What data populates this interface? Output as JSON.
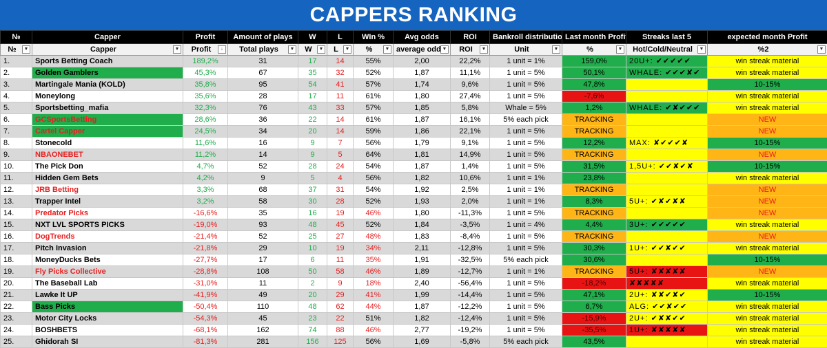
{
  "title": "CAPPERS RANKING",
  "headers_top": [
    "№",
    "Capper",
    "Profit",
    "Amount of plays",
    "W",
    "L",
    "WIn %",
    "Avg odds",
    "ROI",
    "Bankroll distribution",
    "Last month Profit",
    "Streaks last 5",
    "expected month Profit"
  ],
  "headers_filter": [
    "№",
    "Capper",
    "Profit",
    "Total plays",
    "W",
    "L",
    "%",
    "average odds",
    "ROI",
    "Unit",
    "%",
    "Hot/Cold/Neutral",
    "%2"
  ],
  "colors": {
    "banner": "#1565c0",
    "green": "#1fae4b",
    "red": "#e81e1e",
    "yellow": "#ffff00",
    "orange": "#ffb515"
  },
  "rows": [
    {
      "n": "1.",
      "name": "Sports Betting Coach",
      "name_color": "black",
      "name_bg": "none",
      "profit": "189,2%",
      "plays": "31",
      "w": "17",
      "l": "14",
      "win": "55%",
      "odds": "2,00",
      "roi": "22,2%",
      "unit": "1 unit = 1%",
      "lm": "159,0%",
      "lm_bg": "green",
      "streak": "20U+: ✔✔✔✔✔",
      "streak_bg": "green",
      "exp": "win streak material",
      "exp_bg": "yellow"
    },
    {
      "n": "2.",
      "name": "Golden Gamblers",
      "name_color": "black",
      "name_bg": "green",
      "profit": "45,3%",
      "plays": "67",
      "w": "35",
      "l": "32",
      "win": "52%",
      "odds": "1,87",
      "roi": "11,1%",
      "unit": "1 unit = 5%",
      "lm": "50,1%",
      "lm_bg": "green",
      "streak": "WHALE: ✔✔✔✘✔",
      "streak_bg": "green",
      "exp": "win streak material",
      "exp_bg": "yellow"
    },
    {
      "n": "3.",
      "name": "Martingale Mania (KOLD)",
      "name_color": "black",
      "name_bg": "none",
      "profit": "35,8%",
      "plays": "95",
      "w": "54",
      "l": "41",
      "win": "57%",
      "odds": "1,74",
      "roi": "9,6%",
      "unit": "1 unit = 5%",
      "lm": "47,8%",
      "lm_bg": "green",
      "streak": "",
      "streak_bg": "yellow",
      "exp": "10-15%",
      "exp_bg": "green"
    },
    {
      "n": "4.",
      "name": "Moneylong",
      "name_color": "black",
      "name_bg": "none",
      "profit": "35,6%",
      "plays": "28",
      "w": "17",
      "l": "11",
      "win": "61%",
      "odds": "1,80",
      "roi": "27,4%",
      "unit": "1 unit = 5%",
      "lm": "-7,6%",
      "lm_bg": "red",
      "streak": "",
      "streak_bg": "yellow",
      "exp": "win streak material",
      "exp_bg": "yellow"
    },
    {
      "n": "5.",
      "name": "Sportsbetting_mafia",
      "name_color": "black",
      "name_bg": "none",
      "profit": "32,3%",
      "plays": "76",
      "w": "43",
      "l": "33",
      "win": "57%",
      "odds": "1,85",
      "roi": "5,8%",
      "unit": "Whale = 5%",
      "lm": "1,2%",
      "lm_bg": "green",
      "streak": "WHALE: ✔✘✔✔✔",
      "streak_bg": "green",
      "exp": "win streak material",
      "exp_bg": "yellow"
    },
    {
      "n": "6.",
      "name": "GCSportsBetting",
      "name_color": "red",
      "name_bg": "green",
      "profit": "28,6%",
      "plays": "36",
      "w": "22",
      "l": "14",
      "win": "61%",
      "odds": "1,87",
      "roi": "16,1%",
      "unit": "5% each pick",
      "lm": "TRACKING",
      "lm_bg": "orange",
      "streak": "",
      "streak_bg": "yellow",
      "exp": "NEW",
      "exp_bg": "orange"
    },
    {
      "n": "7.",
      "name": "Cartel Capper",
      "name_color": "red",
      "name_bg": "green",
      "profit": "24,5%",
      "plays": "34",
      "w": "20",
      "l": "14",
      "win": "59%",
      "odds": "1,86",
      "roi": "22,1%",
      "unit": "1 unit = 5%",
      "lm": "TRACKING",
      "lm_bg": "orange",
      "streak": "",
      "streak_bg": "yellow",
      "exp": "NEW",
      "exp_bg": "orange"
    },
    {
      "n": "8.",
      "name": "Stonecold",
      "name_color": "black",
      "name_bg": "none",
      "profit": "11,6%",
      "plays": "16",
      "w": "9",
      "l": "7",
      "win": "56%",
      "odds": "1,79",
      "roi": "9,1%",
      "unit": "1 unit = 5%",
      "lm": "12,2%",
      "lm_bg": "green",
      "streak": "MAX: ✘✔✔✔✘",
      "streak_bg": "yellow",
      "exp": "10-15%",
      "exp_bg": "green"
    },
    {
      "n": "9.",
      "name": "NBAONEBET",
      "name_color": "red",
      "name_bg": "none",
      "profit": "11,2%",
      "plays": "14",
      "w": "9",
      "l": "5",
      "win": "64%",
      "odds": "1,81",
      "roi": "14,9%",
      "unit": "1 unit = 5%",
      "lm": "TRACKING",
      "lm_bg": "orange",
      "streak": "",
      "streak_bg": "yellow",
      "exp": "NEW",
      "exp_bg": "orange"
    },
    {
      "n": "10.",
      "name": "The Pick Don",
      "name_color": "black",
      "name_bg": "none",
      "profit": "4,7%",
      "plays": "52",
      "w": "28",
      "l": "24",
      "win": "54%",
      "odds": "1,87",
      "roi": "1,4%",
      "unit": "1 unit = 5%",
      "lm": "31,5%",
      "lm_bg": "green",
      "streak": "1,5U+: ✔✔✘✔✘",
      "streak_bg": "yellow",
      "exp": "10-15%",
      "exp_bg": "green"
    },
    {
      "n": "11.",
      "name": "Hidden Gem Bets",
      "name_color": "black",
      "name_bg": "none",
      "profit": "4,2%",
      "plays": "9",
      "w": "5",
      "l": "4",
      "win": "56%",
      "odds": "1,82",
      "roi": "10,6%",
      "unit": "1 unit = 1%",
      "lm": "23,8%",
      "lm_bg": "green",
      "streak": "",
      "streak_bg": "yellow",
      "exp": "win streak material",
      "exp_bg": "yellow"
    },
    {
      "n": "12.",
      "name": "JRB Betting",
      "name_color": "red",
      "name_bg": "none",
      "profit": "3,3%",
      "plays": "68",
      "w": "37",
      "l": "31",
      "win": "54%",
      "odds": "1,92",
      "roi": "2,5%",
      "unit": "1 unit = 1%",
      "lm": "TRACKING",
      "lm_bg": "orange",
      "streak": "",
      "streak_bg": "yellow",
      "exp": "NEW",
      "exp_bg": "orange"
    },
    {
      "n": "13.",
      "name": "Trapper Intel",
      "name_color": "black",
      "name_bg": "none",
      "profit": "3,2%",
      "plays": "58",
      "w": "30",
      "l": "28",
      "win": "52%",
      "odds": "1,93",
      "roi": "2,0%",
      "unit": "1 unit = 1%",
      "lm": "8,3%",
      "lm_bg": "green",
      "streak": "5U+: ✔✘✔✘✘",
      "streak_bg": "yellow",
      "exp": "NEW",
      "exp_bg": "orange"
    },
    {
      "n": "14.",
      "name": "Predator Picks",
      "name_color": "red",
      "name_bg": "none",
      "profit": "-16,6%",
      "plays": "35",
      "w": "16",
      "l": "19",
      "win": "46%",
      "odds": "1,80",
      "roi": "-11,3%",
      "unit": "1 unit = 5%",
      "lm": "TRACKING",
      "lm_bg": "orange",
      "streak": "",
      "streak_bg": "yellow",
      "exp": "NEW",
      "exp_bg": "orange"
    },
    {
      "n": "15.",
      "name": "NXT LVL SPORTS PICKS",
      "name_color": "black",
      "name_bg": "none",
      "profit": "-19,0%",
      "plays": "93",
      "w": "48",
      "l": "45",
      "win": "52%",
      "odds": "1,84",
      "roi": "-3,5%",
      "unit": "1 unit = 4%",
      "lm": "4,4%",
      "lm_bg": "green",
      "streak": "3U+: ✔✔✔✔✔",
      "streak_bg": "green",
      "exp": "win streak material",
      "exp_bg": "yellow"
    },
    {
      "n": "16.",
      "name": "DogTrends",
      "name_color": "red",
      "name_bg": "none",
      "profit": "-21,4%",
      "plays": "52",
      "w": "25",
      "l": "27",
      "win": "48%",
      "odds": "1,83",
      "roi": "-8,4%",
      "unit": "1 unit = 5%",
      "lm": "TRACKING",
      "lm_bg": "orange",
      "streak": "",
      "streak_bg": "yellow",
      "exp": "NEW",
      "exp_bg": "orange"
    },
    {
      "n": "17.",
      "name": "Pitch Invasion",
      "name_color": "black",
      "name_bg": "none",
      "profit": "-21,8%",
      "plays": "29",
      "w": "10",
      "l": "19",
      "win": "34%",
      "odds": "2,11",
      "roi": "-12,8%",
      "unit": "1 unit = 5%",
      "lm": "30,3%",
      "lm_bg": "green",
      "streak": "1U+: ✔✔✘✔✔",
      "streak_bg": "yellow",
      "exp": "win streak material",
      "exp_bg": "yellow"
    },
    {
      "n": "18.",
      "name": "MoneyDucks Bets",
      "name_color": "black",
      "name_bg": "none",
      "profit": "-27,7%",
      "plays": "17",
      "w": "6",
      "l": "11",
      "win": "35%",
      "odds": "1,91",
      "roi": "-32,5%",
      "unit": "5% each pick",
      "lm": "30,6%",
      "lm_bg": "green",
      "streak": "",
      "streak_bg": "yellow",
      "exp": "10-15%",
      "exp_bg": "green"
    },
    {
      "n": "19.",
      "name": "Fly Picks Collective",
      "name_color": "red",
      "name_bg": "none",
      "profit": "-28,8%",
      "plays": "108",
      "w": "50",
      "l": "58",
      "win": "46%",
      "odds": "1,89",
      "roi": "-12,7%",
      "unit": "1 unit = 1%",
      "lm": "TRACKING",
      "lm_bg": "orange",
      "streak": "5U+: ✘✘✘✘✘",
      "streak_bg": "red",
      "exp": "NEW",
      "exp_bg": "orange"
    },
    {
      "n": "20.",
      "name": "The Baseball Lab",
      "name_color": "black",
      "name_bg": "none",
      "profit": "-31,0%",
      "plays": "11",
      "w": "2",
      "l": "9",
      "win": "18%",
      "odds": "2,40",
      "roi": "-56,4%",
      "unit": "1 unit = 5%",
      "lm": "-18,2%",
      "lm_bg": "red",
      "streak": "✘✘✘✘✘",
      "streak_bg": "red",
      "exp": "win streak material",
      "exp_bg": "yellow"
    },
    {
      "n": "21.",
      "name": "Lawke It UP",
      "name_color": "black",
      "name_bg": "none",
      "profit": "-41,9%",
      "plays": "49",
      "w": "20",
      "l": "29",
      "win": "41%",
      "odds": "1,99",
      "roi": "-14,4%",
      "unit": "1 unit = 5%",
      "lm": "47,1%",
      "lm_bg": "green",
      "streak": "2U+: ✘✘✔✘✔",
      "streak_bg": "yellow",
      "exp": "10-15%",
      "exp_bg": "green"
    },
    {
      "n": "22.",
      "name": "Bass Picks",
      "name_color": "black",
      "name_bg": "green",
      "profit": "-50,4%",
      "plays": "110",
      "w": "48",
      "l": "62",
      "win": "44%",
      "odds": "1,87",
      "roi": "-12,2%",
      "unit": "1 unit = 5%",
      "lm": "6,7%",
      "lm_bg": "green",
      "streak": "ALG: ✔✔✘✔✔",
      "streak_bg": "yellow",
      "exp": "win streak material",
      "exp_bg": "yellow"
    },
    {
      "n": "23.",
      "name": "Motor City Locks",
      "name_color": "black",
      "name_bg": "none",
      "profit": "-54,3%",
      "plays": "45",
      "w": "23",
      "l": "22",
      "win": "51%",
      "odds": "1,82",
      "roi": "-12,4%",
      "unit": "1 unit = 5%",
      "lm": "-15,9%",
      "lm_bg": "red",
      "streak": "2U+: ✔✘✘✔✔",
      "streak_bg": "yellow",
      "exp": "win streak material",
      "exp_bg": "yellow"
    },
    {
      "n": "24.",
      "name": "BOSHBETS",
      "name_color": "black",
      "name_bg": "none",
      "profit": "-68,1%",
      "plays": "162",
      "w": "74",
      "l": "88",
      "win": "46%",
      "odds": "2,77",
      "roi": "-19,2%",
      "unit": "1 unit = 5%",
      "lm": "-35,5%",
      "lm_bg": "red",
      "streak": "1U+: ✘✘✘✘✘",
      "streak_bg": "red",
      "exp": "win streak material",
      "exp_bg": "yellow"
    },
    {
      "n": "25.",
      "name": "Ghidorah SI",
      "name_color": "black",
      "name_bg": "none",
      "profit": "-81,3%",
      "plays": "281",
      "w": "156",
      "l": "125",
      "win": "56%",
      "odds": "1,69",
      "roi": "-5,8%",
      "unit": "5% each pick",
      "lm": "43,5%",
      "lm_bg": "green",
      "streak": "",
      "streak_bg": "yellow",
      "exp": "win streak material",
      "exp_bg": "yellow"
    }
  ]
}
